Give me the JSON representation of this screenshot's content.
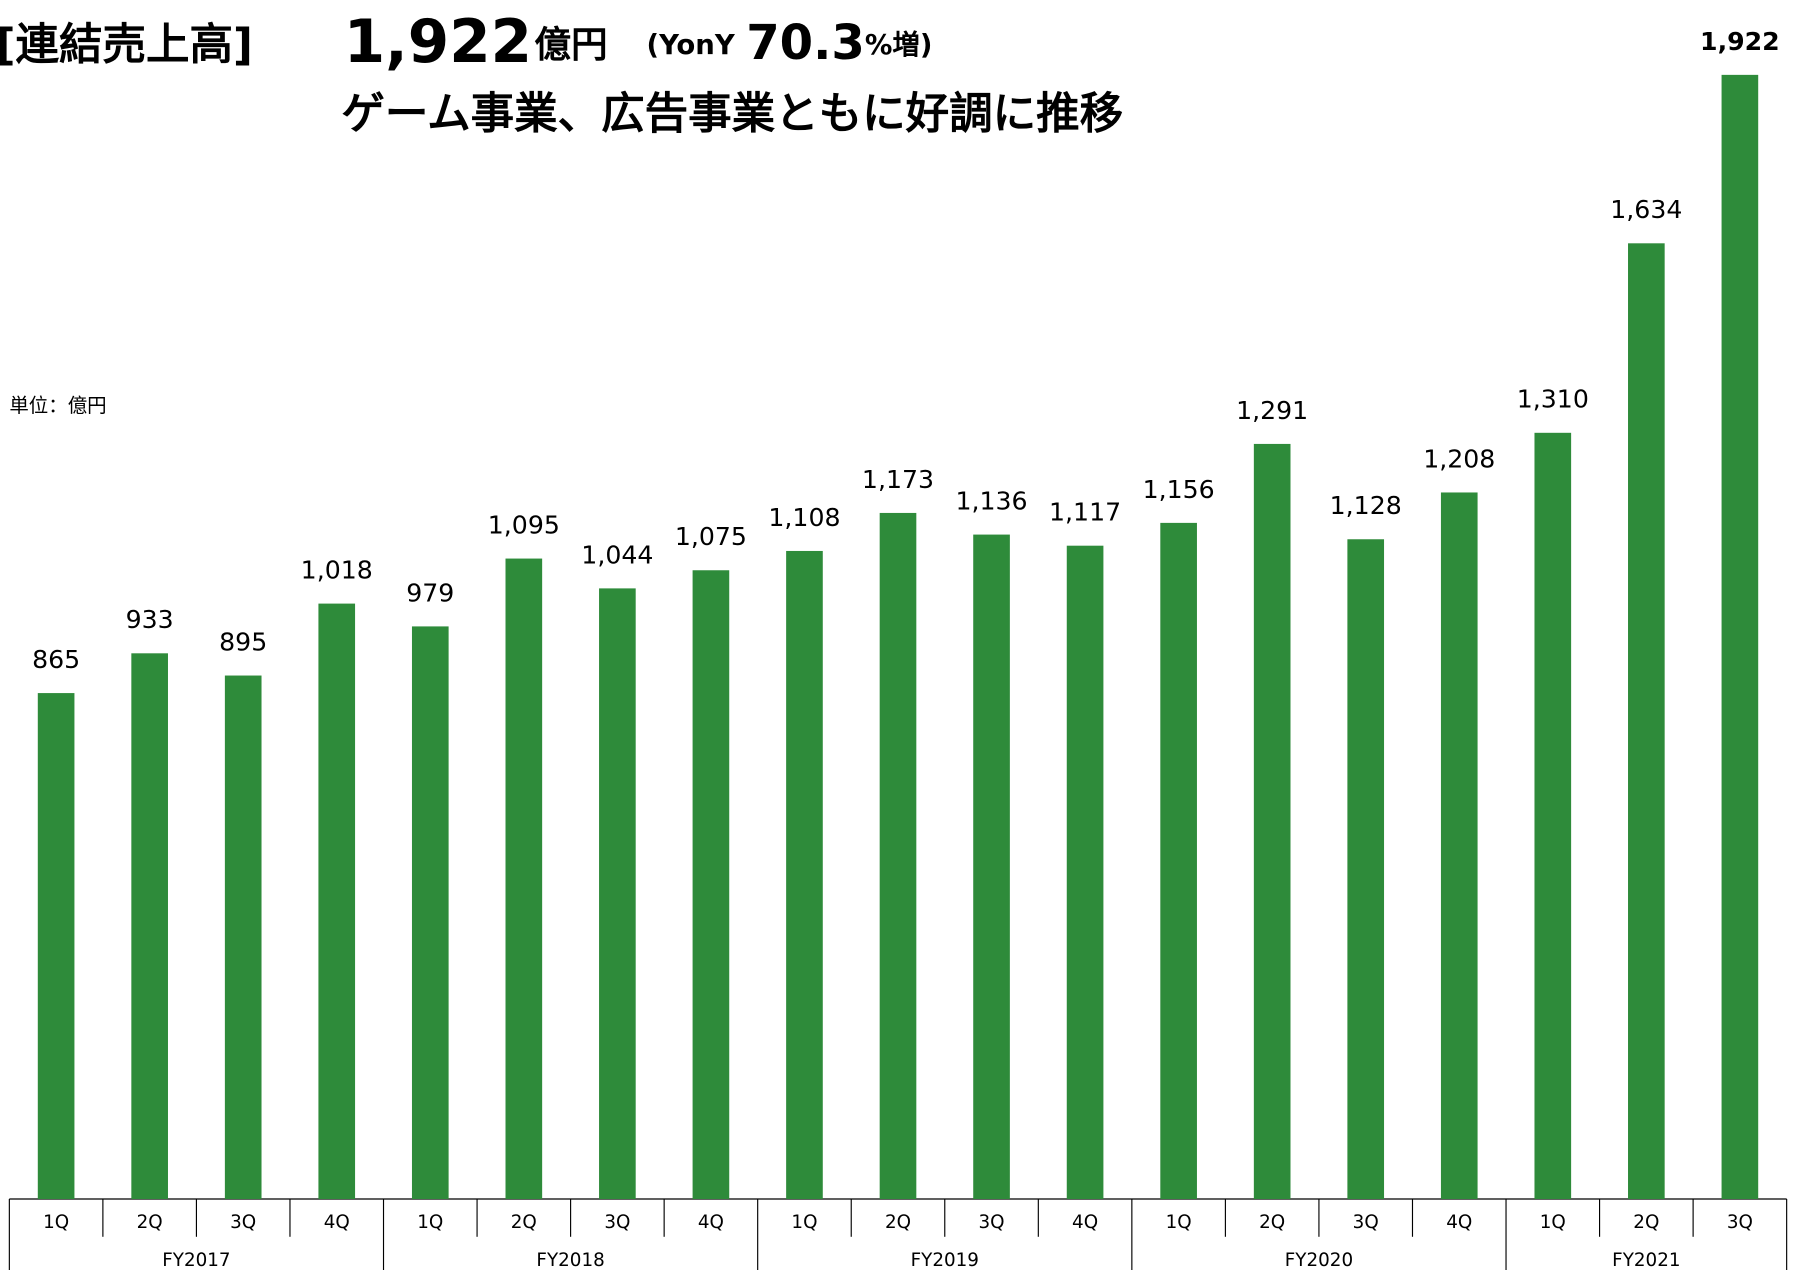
{
  "header": {
    "title": "[連結売上高]",
    "amount": "1,922",
    "amount_unit": "億円",
    "yoy_prefix": "(YonY",
    "yoy_value": "70.3",
    "yoy_suffix": "%増)",
    "subtitle": "ゲーム事業、広告事業ともに好調に推移"
  },
  "chart_data": {
    "type": "bar",
    "unit": "単位：億円",
    "color": "#2e8b3a",
    "ylim": [
      0,
      2050
    ],
    "groups": [
      {
        "name": "FY2017",
        "categories": [
          "1Q",
          "2Q",
          "3Q",
          "4Q"
        ],
        "values": [
          865,
          933,
          895,
          1018
        ],
        "value_labels": [
          "865",
          "933",
          "895",
          "1,018"
        ]
      },
      {
        "name": "FY2018",
        "categories": [
          "1Q",
          "2Q",
          "3Q",
          "4Q"
        ],
        "values": [
          979,
          1095,
          1044,
          1075
        ],
        "value_labels": [
          "979",
          "1,095",
          "1,044",
          "1,075"
        ]
      },
      {
        "name": "FY2019",
        "categories": [
          "1Q",
          "2Q",
          "3Q",
          "4Q"
        ],
        "values": [
          1108,
          1173,
          1136,
          1117
        ],
        "value_labels": [
          "1,108",
          "1,173",
          "1,136",
          "1,117"
        ]
      },
      {
        "name": "FY2020",
        "categories": [
          "1Q",
          "2Q",
          "3Q",
          "4Q"
        ],
        "values": [
          1156,
          1291,
          1128,
          1208
        ],
        "value_labels": [
          "1,156",
          "1,291",
          "1,128",
          "1,208"
        ]
      },
      {
        "name": "FY2021",
        "categories": [
          "1Q",
          "2Q",
          "3Q"
        ],
        "values": [
          1310,
          1634,
          1922
        ],
        "value_labels": [
          "1,310",
          "1,634",
          "1,922"
        ]
      }
    ]
  }
}
